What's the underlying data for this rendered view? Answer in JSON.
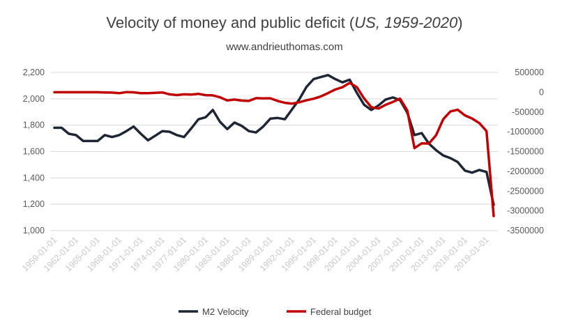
{
  "chart_data": {
    "type": "line",
    "title_prefix": "Velocity of money and public deficit (",
    "title_italic": "US, 1959-2020",
    "title_suffix": ")",
    "subtitle": "www.andrieuthomas.com",
    "x_tick_labels": [
      "1959-01-01",
      "1962-01-01",
      "1965-01-01",
      "1968-01-01",
      "1971-01-01",
      "1974-01-01",
      "1977-01-01",
      "1980-01-01",
      "1983-01-01",
      "1986-01-01",
      "1989-01-01",
      "1992-01-01",
      "1995-01-01",
      "1998-01-01",
      "2001-01-01",
      "2004-01-01",
      "2007-01-01",
      "2010-01-01",
      "2013-01-01",
      "2016-01-01",
      "2019-01-01"
    ],
    "y_left": {
      "range": [
        1000,
        2200
      ],
      "ticks": [
        "2,200",
        "2,000",
        "1,800",
        "1,600",
        "1,400",
        "1,200",
        "1,000"
      ],
      "tick_values": [
        2200,
        2000,
        1800,
        1600,
        1400,
        1200,
        1000
      ]
    },
    "y_right": {
      "range": [
        -3500000,
        500000
      ],
      "ticks": [
        "500000",
        "0",
        "-500000",
        "-1000000",
        "-1500000",
        "-2000000",
        "-2500000",
        "-3000000",
        "-3500000"
      ],
      "tick_values": [
        500000,
        0,
        -500000,
        -1000000,
        -1500000,
        -2000000,
        -2500000,
        -3000000,
        -3500000
      ]
    },
    "grid": true,
    "legend_position": "bottom",
    "series": [
      {
        "name": "M2 Velocity",
        "color": "#1f2633",
        "axis": "left",
        "x": [
          1959,
          1960,
          1961,
          1962,
          1963,
          1964,
          1965,
          1966,
          1967,
          1968,
          1969,
          1970,
          1971,
          1972,
          1973,
          1974,
          1975,
          1976,
          1977,
          1978,
          1979,
          1980,
          1981,
          1982,
          1983,
          1984,
          1985,
          1986,
          1987,
          1988,
          1989,
          1990,
          1991,
          1992,
          1993,
          1994,
          1995,
          1996,
          1997,
          1998,
          1999,
          2000,
          2001,
          2002,
          2003,
          2004,
          2005,
          2006,
          2007,
          2008,
          2009,
          2010,
          2011,
          2012,
          2013,
          2014,
          2015,
          2016,
          2017,
          2018,
          2019,
          2020
        ],
        "values": [
          1780,
          1780,
          1735,
          1725,
          1680,
          1680,
          1680,
          1725,
          1710,
          1725,
          1755,
          1790,
          1735,
          1685,
          1720,
          1755,
          1750,
          1725,
          1710,
          1775,
          1845,
          1860,
          1915,
          1825,
          1770,
          1820,
          1795,
          1755,
          1745,
          1790,
          1850,
          1855,
          1845,
          1920,
          1995,
          2090,
          2150,
          2165,
          2180,
          2150,
          2125,
          2145,
          2045,
          1955,
          1915,
          1950,
          1995,
          2010,
          1990,
          1895,
          1725,
          1740,
          1660,
          1610,
          1570,
          1550,
          1520,
          1455,
          1440,
          1460,
          1445,
          1195
        ]
      },
      {
        "name": "Federal budget",
        "color": "#c00000",
        "axis": "right",
        "x": [
          1959,
          1960,
          1961,
          1962,
          1963,
          1964,
          1965,
          1966,
          1967,
          1968,
          1969,
          1970,
          1971,
          1972,
          1973,
          1974,
          1975,
          1976,
          1977,
          1978,
          1979,
          1980,
          1981,
          1982,
          1983,
          1984,
          1985,
          1986,
          1987,
          1988,
          1989,
          1990,
          1991,
          1992,
          1993,
          1994,
          1995,
          1996,
          1997,
          1998,
          1999,
          2000,
          2001,
          2002,
          2003,
          2004,
          2005,
          2006,
          2007,
          2008,
          2009,
          2010,
          2011,
          2012,
          2013,
          2014,
          2015,
          2016,
          2017,
          2018,
          2019,
          2020
        ],
        "values": [
          0,
          0,
          0,
          0,
          0,
          0,
          0,
          -5000,
          -10000,
          -25000,
          3000,
          -3000,
          -23000,
          -23000,
          -15000,
          -6000,
          -53000,
          -73000,
          -54000,
          -59000,
          -41000,
          -74000,
          -79000,
          -128000,
          -208000,
          -185000,
          -212000,
          -221000,
          -150000,
          -155000,
          -153000,
          -221000,
          -269000,
          -290000,
          -255000,
          -203000,
          -164000,
          -107000,
          -22000,
          69000,
          126000,
          236000,
          128000,
          -158000,
          -378000,
          -413000,
          -318000,
          -248000,
          -161000,
          -459000,
          -1413000,
          -1294000,
          -1300000,
          -1087000,
          -680000,
          -485000,
          -442000,
          -585000,
          -665000,
          -779000,
          -984000,
          -3132000
        ]
      }
    ]
  }
}
